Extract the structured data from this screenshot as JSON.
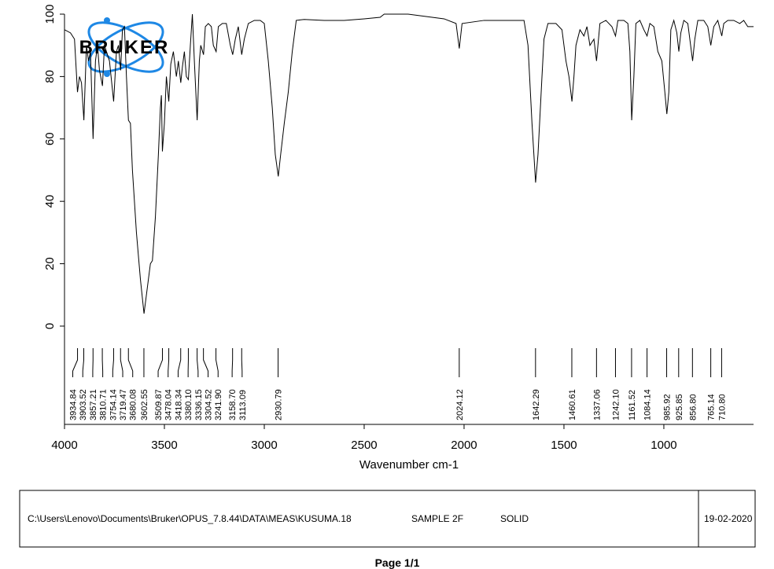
{
  "chart_data": {
    "type": "line",
    "logo": "BRUKER",
    "xlabel": "Wavenumber cm-1",
    "xlim": [
      4000,
      551
    ],
    "xticks": [
      4000,
      3500,
      3000,
      2500,
      2000,
      1500,
      1000
    ],
    "ylim": [
      -31.5,
      100
    ],
    "yticks": [
      0,
      20,
      40,
      60,
      80,
      100
    ],
    "series": [
      {
        "color": "#000000",
        "x": [
          4000,
          3970,
          3950,
          3935,
          3925,
          3915,
          3903,
          3890,
          3880,
          3870,
          3857,
          3845,
          3835,
          3825,
          3810,
          3800,
          3790,
          3775,
          3754,
          3740,
          3730,
          3719,
          3710,
          3700,
          3690,
          3680,
          3670,
          3660,
          3640,
          3620,
          3602,
          3590,
          3570,
          3560,
          3545,
          3530,
          3520,
          3515,
          3510,
          3500,
          3490,
          3478,
          3468,
          3455,
          3440,
          3430,
          3418,
          3410,
          3400,
          3390,
          3380,
          3370,
          3360,
          3350,
          3336,
          3325,
          3318,
          3304,
          3295,
          3280,
          3265,
          3255,
          3241,
          3230,
          3210,
          3190,
          3170,
          3158,
          3145,
          3130,
          3113,
          3100,
          3080,
          3050,
          3020,
          3000,
          2980,
          2960,
          2945,
          2930,
          2918,
          2900,
          2880,
          2860,
          2840,
          2800,
          2700,
          2600,
          2500,
          2420,
          2400,
          2280,
          2100,
          2040,
          2024,
          2010,
          1900,
          1700,
          1680,
          1660,
          1642,
          1630,
          1610,
          1600,
          1580,
          1540,
          1510,
          1490,
          1475,
          1460,
          1450,
          1440,
          1420,
          1400,
          1385,
          1370,
          1350,
          1337,
          1320,
          1290,
          1260,
          1242,
          1230,
          1200,
          1180,
          1170,
          1161,
          1150,
          1140,
          1120,
          1100,
          1084,
          1070,
          1050,
          1030,
          1010,
          995,
          985,
          975,
          965,
          950,
          935,
          925,
          915,
          900,
          880,
          870,
          856,
          845,
          830,
          800,
          780,
          765,
          750,
          730,
          710,
          700,
          680,
          650,
          620,
          600,
          580,
          560,
          551
        ],
        "values": [
          95,
          94,
          92,
          75,
          80,
          78,
          66,
          90,
          85,
          88,
          60,
          85,
          90,
          82,
          77,
          90,
          88,
          85,
          72,
          88,
          90,
          82,
          95,
          96,
          80,
          66,
          65,
          50,
          30,
          15,
          4,
          10,
          20,
          21,
          35,
          55,
          70,
          74,
          56,
          65,
          80,
          72,
          84,
          88,
          80,
          85,
          78,
          83,
          88,
          80,
          79,
          90,
          100,
          85,
          66,
          85,
          90,
          87,
          96,
          97,
          96,
          90,
          88,
          96,
          97,
          97,
          90,
          87,
          92,
          96,
          87,
          92,
          97,
          98,
          98,
          97,
          85,
          70,
          55,
          48,
          55,
          65,
          75,
          88,
          98,
          98.3,
          98,
          98,
          98.5,
          99,
          100,
          100,
          98.5,
          97,
          89,
          97,
          98,
          98,
          90,
          65,
          46,
          55,
          80,
          92,
          97,
          97,
          95,
          85,
          80,
          72,
          80,
          90,
          95,
          93,
          96,
          90,
          92,
          85,
          97,
          98,
          96,
          93,
          98,
          98,
          97,
          88,
          66,
          80,
          97,
          98,
          95,
          93,
          97,
          96,
          88,
          85,
          75,
          68,
          75,
          95,
          98,
          94,
          88,
          94,
          98,
          97,
          92,
          85,
          92,
          98,
          98,
          96,
          90,
          96,
          98,
          93,
          97,
          98,
          98,
          97,
          98,
          96,
          96,
          96
        ]
      }
    ],
    "peaks": {
      "values": [
        3934.84,
        3903.52,
        3857.21,
        3810.71,
        3754.14,
        3719.47,
        3680.08,
        3602.55,
        3509.87,
        3478.04,
        3418.34,
        3380.1,
        3336.15,
        3304.52,
        3241.9,
        3158.7,
        3113.09,
        2930.79,
        2024.12,
        1642.29,
        1460.61,
        1337.06,
        1242.1,
        1161.52,
        1084.14,
        985.92,
        925.85,
        856.8,
        765.14,
        710.8
      ],
      "value_labels": [
        "3934.84",
        "3903.52",
        "3857.21",
        "3810.71",
        "3754.14",
        "3719.47",
        "3680.08",
        "3602.55",
        "3509.87",
        "3478.04",
        "3418.34",
        "3380.10",
        "3336.15",
        "3304.52",
        "3241.90",
        "3158.70",
        "3113.09",
        "2930.79",
        "2024.12",
        "1642.29",
        "1460.61",
        "1337.06",
        "1242.10",
        "1161.52",
        "1084.14",
        "985.92",
        "925.85",
        "856.80",
        "765.14",
        "710.80"
      ]
    }
  },
  "footer": {
    "path": "C:\\Users\\Lenovo\\Documents\\Bruker\\OPUS_7.8.44\\DATA\\MEAS\\KUSUMA.18",
    "sample": "SAMPLE 2F",
    "form": "SOLID",
    "date": "19-02-2020",
    "page": "Page 1/1"
  }
}
